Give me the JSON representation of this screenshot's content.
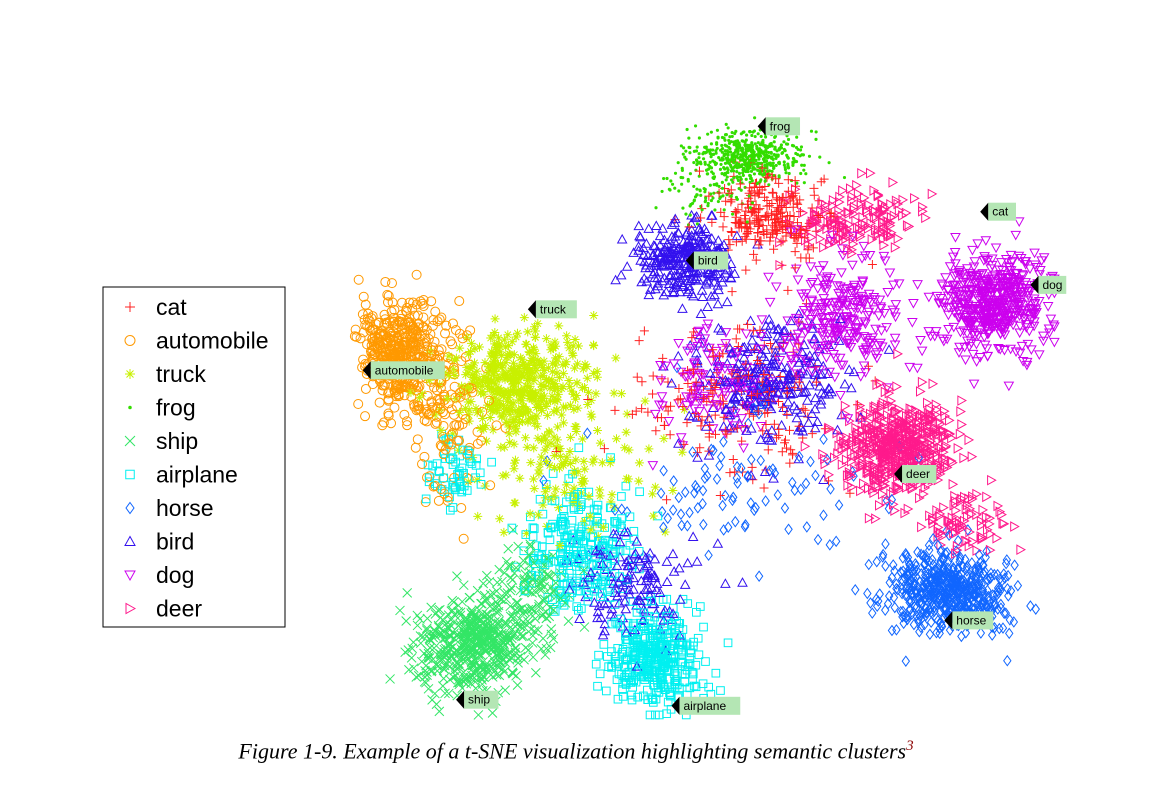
{
  "chart_data": {
    "type": "scatter",
    "xlabel": "",
    "ylabel": "",
    "grid": false,
    "axes_visible": false,
    "legend_position": "left",
    "series": [
      {
        "name": "cat",
        "marker": "plus",
        "color": "#ff2020",
        "centroid": [
          0.55,
          0.8
        ],
        "clusters": [
          [
            0.6,
            0.82,
            0.07,
            0.06,
            240
          ],
          [
            0.56,
            0.52,
            0.14,
            0.12,
            200
          ]
        ]
      },
      {
        "name": "automobile",
        "marker": "circle",
        "color": "#ff9900",
        "centroid": [
          0.05,
          0.58
        ],
        "clusters": [
          [
            0.08,
            0.6,
            0.05,
            0.08,
            420
          ],
          [
            0.15,
            0.5,
            0.05,
            0.12,
            140
          ]
        ]
      },
      {
        "name": "truck",
        "marker": "asterisk",
        "color": "#c8f000",
        "centroid": [
          0.17,
          0.72
        ],
        "clusters": [
          [
            0.25,
            0.55,
            0.09,
            0.08,
            460
          ],
          [
            0.32,
            0.4,
            0.12,
            0.1,
            120
          ]
        ]
      },
      {
        "name": "frog",
        "marker": "point",
        "color": "#33dd00",
        "centroid": [
          0.59,
          0.97
        ],
        "clusters": [
          [
            0.57,
            0.92,
            0.07,
            0.04,
            560
          ],
          [
            0.52,
            0.86,
            0.06,
            0.04,
            80
          ]
        ]
      },
      {
        "name": "ship",
        "marker": "x",
        "color": "#33e666",
        "centroid": [
          0.17,
          0.03
        ],
        "clusters": [
          [
            0.19,
            0.12,
            0.07,
            0.07,
            520
          ],
          [
            0.27,
            0.22,
            0.05,
            0.06,
            100
          ]
        ]
      },
      {
        "name": "airplane",
        "marker": "square",
        "color": "#00f0f0",
        "centroid": [
          0.47,
          0.02
        ],
        "clusters": [
          [
            0.44,
            0.1,
            0.06,
            0.07,
            380
          ],
          [
            0.34,
            0.28,
            0.07,
            0.09,
            260
          ],
          [
            0.16,
            0.4,
            0.04,
            0.06,
            60
          ]
        ]
      },
      {
        "name": "horse",
        "marker": "diamond",
        "color": "#1166ff",
        "centroid": [
          0.85,
          0.15
        ],
        "clusters": [
          [
            0.84,
            0.21,
            0.08,
            0.06,
            560
          ],
          [
            0.55,
            0.38,
            0.18,
            0.12,
            100
          ]
        ]
      },
      {
        "name": "bird",
        "marker": "triangle-up",
        "color": "#3311ee",
        "centroid": [
          0.5,
          0.76
        ],
        "clusters": [
          [
            0.48,
            0.75,
            0.06,
            0.05,
            300
          ],
          [
            0.6,
            0.55,
            0.1,
            0.1,
            280
          ],
          [
            0.4,
            0.22,
            0.08,
            0.08,
            140
          ]
        ]
      },
      {
        "name": "dog",
        "marker": "triangle-down",
        "color": "#cc00ee",
        "centroid": [
          0.93,
          0.72
        ],
        "clusters": [
          [
            0.91,
            0.68,
            0.07,
            0.07,
            480
          ],
          [
            0.7,
            0.66,
            0.08,
            0.09,
            260
          ],
          [
            0.52,
            0.55,
            0.08,
            0.08,
            120
          ]
        ]
      },
      {
        "name": "deer",
        "marker": "triangle-right",
        "color": "#ff1a8c",
        "centroid": [
          0.78,
          0.42
        ],
        "clusters": [
          [
            0.78,
            0.44,
            0.07,
            0.07,
            560
          ],
          [
            0.72,
            0.82,
            0.08,
            0.05,
            160
          ],
          [
            0.87,
            0.32,
            0.06,
            0.05,
            80
          ]
        ]
      }
    ],
    "centroid_labels": [
      {
        "text": "frog",
        "x": 0.59,
        "y": 0.97
      },
      {
        "text": "cat",
        "x": 0.9,
        "y": 0.83
      },
      {
        "text": "bird",
        "x": 0.49,
        "y": 0.75
      },
      {
        "text": "dog",
        "x": 0.97,
        "y": 0.71
      },
      {
        "text": "truck",
        "x": 0.27,
        "y": 0.67
      },
      {
        "text": "automobile",
        "x": 0.04,
        "y": 0.57
      },
      {
        "text": "deer",
        "x": 0.78,
        "y": 0.4
      },
      {
        "text": "horse",
        "x": 0.85,
        "y": 0.16
      },
      {
        "text": "ship",
        "x": 0.17,
        "y": 0.03
      },
      {
        "text": "airplane",
        "x": 0.47,
        "y": 0.02
      }
    ]
  },
  "caption": {
    "text": "Figure 1-9. Example of a t-SNE visualization highlighting semantic clusters",
    "footnote_ref": "3"
  }
}
